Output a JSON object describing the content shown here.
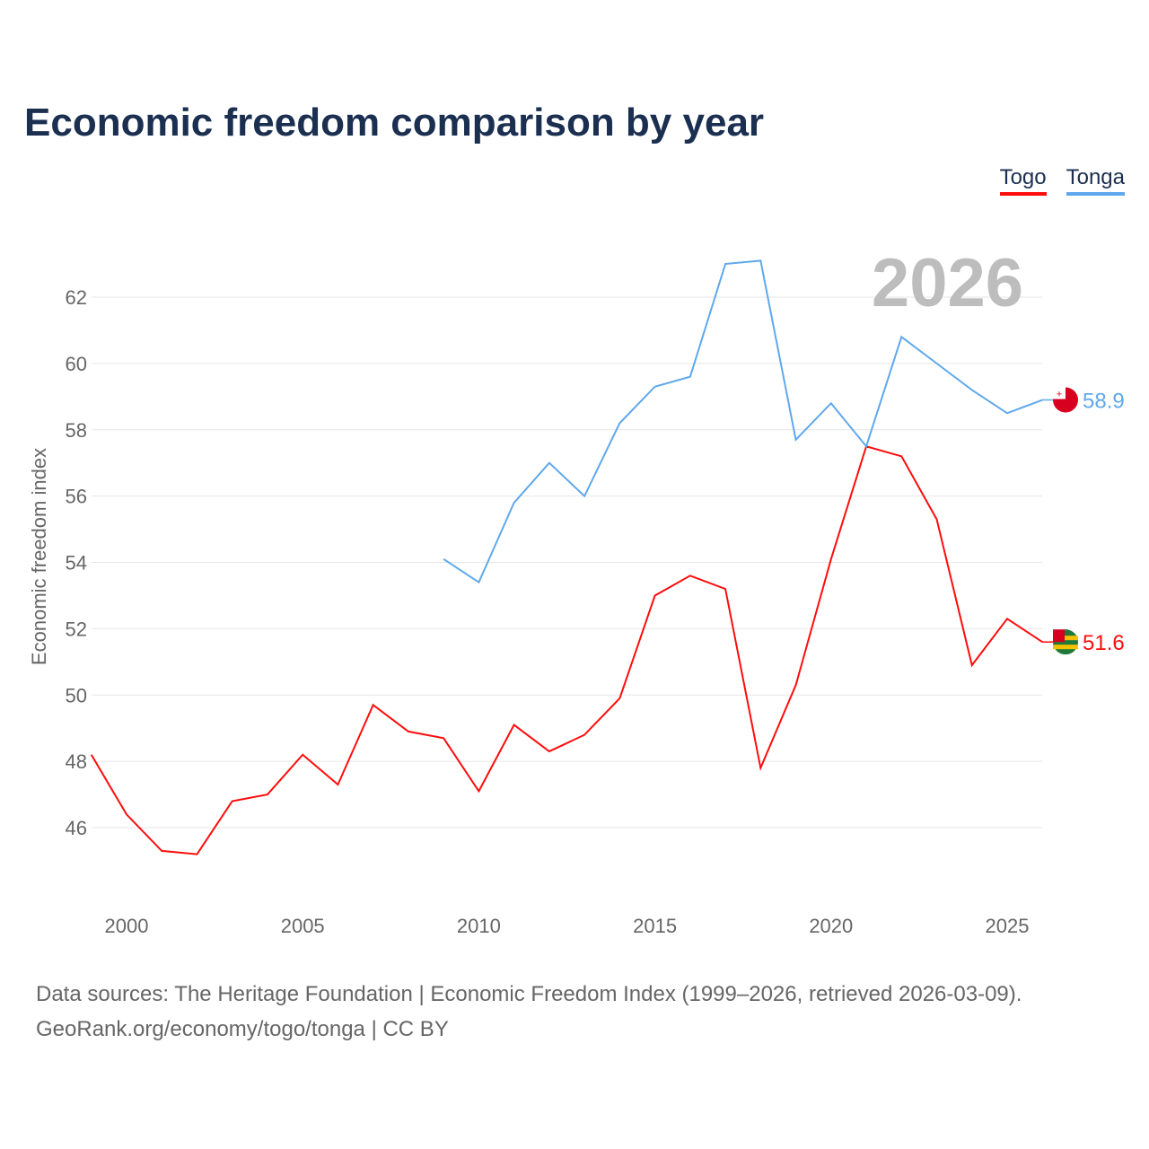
{
  "title": "Economic freedom comparison by year",
  "year_watermark": "2026",
  "footer": {
    "line1": "Data sources: The Heritage Foundation | Economic Freedom Index (1999–2026, retrieved 2026-03-09).",
    "line2": "GeoRank.org/economy/togo/tonga | CC BY"
  },
  "colors": {
    "togo": "#ff0d0d",
    "tonga": "#5fa8ec"
  },
  "chart_data": {
    "type": "line",
    "title": "Economic freedom comparison by year",
    "ylabel": "Economic freedom index",
    "xlabel": "",
    "xlim": [
      1999,
      2026
    ],
    "ylim": [
      43.8,
      64
    ],
    "xticks": [
      2000,
      2005,
      2010,
      2015,
      2020,
      2025
    ],
    "yticks": [
      46,
      48,
      50,
      52,
      54,
      56,
      58,
      60,
      62
    ],
    "legend": "top-right",
    "grid": true,
    "series": [
      {
        "name": "Togo",
        "end_label": "51.6",
        "x": [
          1999,
          2000,
          2001,
          2002,
          2003,
          2004,
          2005,
          2006,
          2007,
          2008,
          2009,
          2010,
          2011,
          2012,
          2013,
          2014,
          2015,
          2016,
          2017,
          2018,
          2019,
          2020,
          2021,
          2022,
          2023,
          2024,
          2025,
          2026
        ],
        "values": [
          48.2,
          46.4,
          45.3,
          45.2,
          46.8,
          47.0,
          48.2,
          47.3,
          49.7,
          48.9,
          48.7,
          47.1,
          49.1,
          48.3,
          48.8,
          49.9,
          53.0,
          53.6,
          53.2,
          47.8,
          50.3,
          54.1,
          57.5,
          57.2,
          55.3,
          50.9,
          52.3,
          51.6
        ]
      },
      {
        "name": "Tonga",
        "end_label": "58.9",
        "x": [
          2009,
          2010,
          2011,
          2012,
          2013,
          2014,
          2015,
          2016,
          2017,
          2018,
          2019,
          2020,
          2021,
          2022,
          2023,
          2024,
          2025,
          2026
        ],
        "values": [
          54.1,
          53.4,
          55.8,
          57.0,
          56.0,
          58.2,
          59.3,
          59.6,
          63.0,
          63.1,
          57.7,
          58.8,
          57.5,
          60.8,
          60.0,
          59.2,
          58.5,
          58.9
        ]
      }
    ]
  }
}
